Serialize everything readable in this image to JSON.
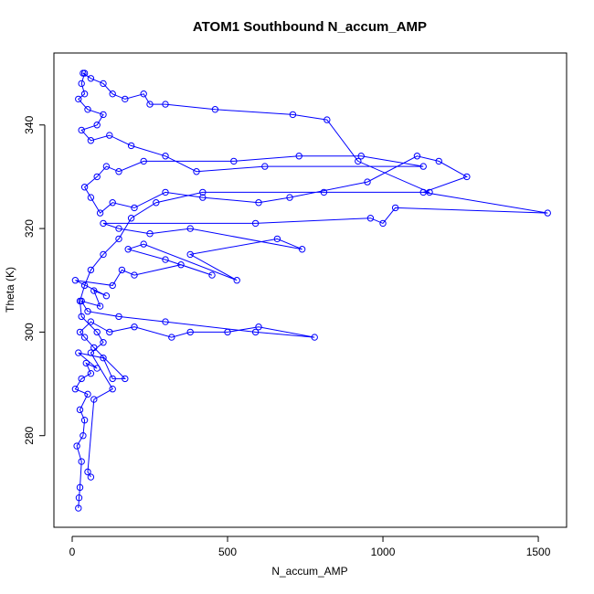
{
  "chart_data": {
    "type": "line",
    "title": "ATOM1 Southbound N_accum_AMP",
    "x_label": "N_accum_AMP",
    "y_label": "Theta (K)",
    "color": "#0000ff",
    "markers": true,
    "xlim": [
      -58.8,
      1591
    ],
    "ylim": [
      262.3,
      353.9
    ],
    "xticks": [
      0,
      500,
      1000,
      1500
    ],
    "yticks": [
      280,
      300,
      320,
      340
    ],
    "x": [
      20,
      22,
      25,
      30,
      15,
      35,
      40,
      25,
      50,
      10,
      30,
      60,
      45,
      80,
      20,
      100,
      130,
      170,
      70,
      40,
      25,
      60,
      120,
      200,
      320,
      380,
      500,
      600,
      780,
      590,
      300,
      150,
      50,
      30,
      90,
      70,
      110,
      10,
      130,
      160,
      200,
      350,
      450,
      300,
      180,
      230,
      530,
      380,
      660,
      740,
      380,
      250,
      150,
      100,
      590,
      960,
      1000,
      1040,
      1530,
      1130,
      1270,
      1180,
      1110,
      950,
      700,
      600,
      420,
      300,
      200,
      130,
      90,
      60,
      40,
      80,
      110,
      150,
      230,
      520,
      730,
      930,
      1130,
      620,
      400,
      300,
      190,
      120,
      60,
      30,
      80,
      100,
      50,
      20,
      40,
      30,
      40,
      35,
      60,
      100,
      130,
      170,
      230,
      250,
      300,
      460,
      710,
      820,
      920,
      1150,
      810,
      420,
      270,
      190,
      150,
      100,
      60,
      40,
      25,
      30,
      80,
      100,
      60,
      130,
      70,
      50,
      60
    ],
    "values": [
      266,
      268,
      270,
      275,
      278,
      280,
      283,
      285,
      288,
      289,
      291,
      292,
      294,
      293,
      296,
      295,
      291,
      291,
      297,
      299,
      300,
      302,
      300,
      301,
      299,
      300,
      300,
      301,
      299,
      300,
      302,
      303,
      304,
      306,
      305,
      308,
      307,
      310,
      309,
      312,
      311,
      313,
      311,
      314,
      316,
      317,
      310,
      315,
      318,
      316,
      320,
      319,
      320,
      321,
      321,
      322,
      321,
      324,
      323,
      327,
      330,
      333,
      334,
      329,
      326,
      325,
      326,
      327,
      324,
      325,
      323,
      326,
      328,
      330,
      332,
      331,
      333,
      333,
      334,
      334,
      332,
      332,
      331,
      334,
      336,
      338,
      337,
      339,
      340,
      342,
      343,
      345,
      346,
      348,
      350,
      350,
      349,
      348,
      346,
      345,
      346,
      344,
      344,
      343,
      342,
      341,
      333,
      327,
      327,
      327,
      325,
      322,
      318,
      315,
      312,
      309,
      306,
      303,
      300,
      298,
      296,
      289,
      287,
      273,
      272
    ]
  }
}
